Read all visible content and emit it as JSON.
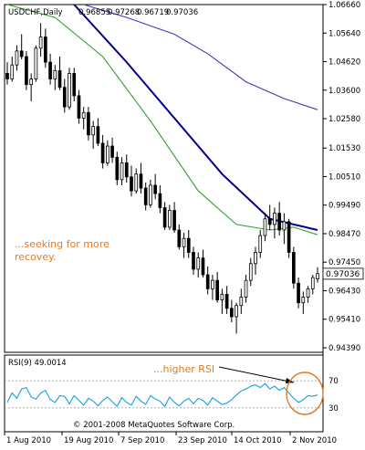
{
  "colors": {
    "frame": "#000000",
    "price_bars": "#000000",
    "ma_fast": "#2ea02e",
    "ma_medium": "#00008b",
    "ma_slow": "#3c3cb4",
    "rsi_line": "#1a9ee8",
    "rsi_levels": "#a0a0a0",
    "annotation": "#e07b28",
    "arrow": "#000000"
  },
  "chart_data": [
    {
      "type": "ohlc",
      "header": {
        "symbol": "USDCHF,Daily",
        "open": "0.96855",
        "high": "0.97268",
        "low": "0.96719",
        "close": "0.97036"
      },
      "y_tick_labels": [
        "1.06660",
        "1.05640",
        "1.04620",
        "1.03600",
        "1.02580",
        "1.01530",
        "1.00510",
        "0.99490",
        "0.98470",
        "0.97450",
        "0.96430",
        "0.95410",
        "0.94390"
      ],
      "current_price_label": "0.97036",
      "ylim": [
        0.9439,
        1.0666
      ],
      "x_tick_labels": [
        "1 Aug 2010",
        "19 Aug 2010",
        "7 Sep 2010",
        "23 Sep 2010",
        "14 Oct 2010",
        "2 Nov 2010"
      ],
      "annotation": [
        "...seeking for more",
        "recovey."
      ],
      "candles_note": "approximate daily OHLC read off the chart",
      "candles": [
        [
          1.042,
          1.046,
          1.038,
          1.04
        ],
        [
          1.04,
          1.048,
          1.039,
          1.045
        ],
        [
          1.045,
          1.052,
          1.043,
          1.05
        ],
        [
          1.05,
          1.056,
          1.047,
          1.048
        ],
        [
          1.048,
          1.05,
          1.036,
          1.038
        ],
        [
          1.038,
          1.042,
          1.032,
          1.04
        ],
        [
          1.04,
          1.052,
          1.039,
          1.051
        ],
        [
          1.051,
          1.06,
          1.048,
          1.055
        ],
        [
          1.055,
          1.058,
          1.044,
          1.046
        ],
        [
          1.046,
          1.049,
          1.038,
          1.04
        ],
        [
          1.04,
          1.045,
          1.036,
          1.043
        ],
        [
          1.043,
          1.048,
          1.036,
          1.037
        ],
        [
          1.037,
          1.04,
          1.028,
          1.03
        ],
        [
          1.03,
          1.044,
          1.029,
          1.042
        ],
        [
          1.042,
          1.044,
          1.032,
          1.034
        ],
        [
          1.034,
          1.036,
          1.024,
          1.026
        ],
        [
          1.026,
          1.03,
          1.022,
          1.028
        ],
        [
          1.028,
          1.03,
          1.018,
          1.02
        ],
        [
          1.02,
          1.025,
          1.015,
          1.023
        ],
        [
          1.023,
          1.026,
          1.016,
          1.017
        ],
        [
          1.017,
          1.02,
          1.008,
          1.01
        ],
        [
          1.01,
          1.018,
          1.009,
          1.016
        ],
        [
          1.016,
          1.019,
          1.01,
          1.012
        ],
        [
          1.012,
          1.014,
          1.002,
          1.004
        ],
        [
          1.004,
          1.012,
          1.002,
          1.01
        ],
        [
          1.01,
          1.013,
          1.003,
          1.005
        ],
        [
          1.005,
          1.009,
          0.998,
          1.0
        ],
        [
          1.0,
          1.008,
          0.999,
          1.006
        ],
        [
          1.006,
          1.01,
          0.999,
          1.001
        ],
        [
          1.001,
          1.003,
          0.993,
          0.995
        ],
        [
          0.995,
          1.004,
          0.994,
          1.002
        ],
        [
          1.002,
          1.006,
          0.997,
          0.999
        ],
        [
          0.999,
          1.002,
          0.992,
          0.994
        ],
        [
          0.994,
          0.996,
          0.986,
          0.987
        ],
        [
          0.987,
          0.995,
          0.986,
          0.993
        ],
        [
          0.993,
          0.996,
          0.985,
          0.986
        ],
        [
          0.986,
          0.988,
          0.979,
          0.98
        ],
        [
          0.98,
          0.985,
          0.976,
          0.983
        ],
        [
          0.983,
          0.986,
          0.976,
          0.978
        ],
        [
          0.978,
          0.98,
          0.97,
          0.972
        ],
        [
          0.972,
          0.978,
          0.969,
          0.976
        ],
        [
          0.976,
          0.979,
          0.969,
          0.97
        ],
        [
          0.97,
          0.973,
          0.963,
          0.965
        ],
        [
          0.965,
          0.97,
          0.961,
          0.968
        ],
        [
          0.968,
          0.971,
          0.96,
          0.961
        ],
        [
          0.961,
          0.965,
          0.956,
          0.963
        ],
        [
          0.963,
          0.966,
          0.956,
          0.958
        ],
        [
          0.958,
          0.961,
          0.953,
          0.955
        ],
        [
          0.955,
          0.96,
          0.949,
          0.959
        ],
        [
          0.959,
          0.965,
          0.956,
          0.962
        ],
        [
          0.962,
          0.97,
          0.96,
          0.968
        ],
        [
          0.968,
          0.976,
          0.966,
          0.974
        ],
        [
          0.974,
          0.98,
          0.97,
          0.978
        ],
        [
          0.978,
          0.986,
          0.976,
          0.984
        ],
        [
          0.984,
          0.992,
          0.982,
          0.99
        ],
        [
          0.99,
          0.995,
          0.986,
          0.988
        ],
        [
          0.988,
          0.994,
          0.983,
          0.992
        ],
        [
          0.992,
          0.996,
          0.984,
          0.986
        ],
        [
          0.986,
          0.992,
          0.981,
          0.989
        ],
        [
          0.989,
          0.99,
          0.976,
          0.978
        ],
        [
          0.978,
          0.98,
          0.965,
          0.967
        ],
        [
          0.967,
          0.969,
          0.958,
          0.96
        ],
        [
          0.96,
          0.964,
          0.956,
          0.962
        ],
        [
          0.962,
          0.966,
          0.96,
          0.965
        ],
        [
          0.965,
          0.97,
          0.963,
          0.969
        ],
        [
          0.9685,
          0.9727,
          0.9672,
          0.9704
        ]
      ],
      "moving_averages": [
        {
          "color_key": "ma_fast",
          "points": [
            [
              0,
              1.0666
            ],
            [
              10,
              1.062
            ],
            [
              20,
              1.048
            ],
            [
              30,
              1.025
            ],
            [
              40,
              1.0
            ],
            [
              48,
              0.988
            ],
            [
              55,
              0.986
            ],
            [
              60,
              0.987
            ],
            [
              65,
              0.9843
            ]
          ]
        },
        {
          "color_key": "ma_medium",
          "points": [
            [
              14,
              1.0666
            ],
            [
              25,
              1.046
            ],
            [
              35,
              1.026
            ],
            [
              45,
              1.006
            ],
            [
              55,
              0.99
            ],
            [
              65,
              0.986
            ]
          ]
        },
        {
          "color_key": "ma_slow",
          "points": [
            [
              16,
              1.0666
            ],
            [
              25,
              1.062
            ],
            [
              35,
              1.056
            ],
            [
              42,
              1.049
            ],
            [
              50,
              1.039
            ],
            [
              58,
              1.033
            ],
            [
              65,
              1.029
            ]
          ]
        }
      ]
    },
    {
      "type": "line",
      "header": "RSI(9) 49.0014",
      "ylim": [
        0,
        100
      ],
      "levels": [
        70,
        30
      ],
      "level_labels": [
        "70",
        "30"
      ],
      "annotation": "...higher RSI",
      "copyright": "© 2001-2008 MetaQuotes Software Corp.",
      "values": [
        38,
        52,
        44,
        58,
        60,
        46,
        43,
        52,
        56,
        42,
        38,
        48,
        47,
        36,
        48,
        41,
        34,
        44,
        40,
        33,
        41,
        46,
        39,
        32,
        45,
        38,
        34,
        47,
        40,
        35,
        48,
        43,
        40,
        32,
        46,
        38,
        33,
        40,
        44,
        36,
        44,
        41,
        34,
        45,
        40,
        35,
        37,
        42,
        49,
        55,
        58,
        62,
        64,
        60,
        66,
        58,
        62,
        56,
        60,
        52,
        44,
        38,
        42,
        48,
        47,
        49
      ]
    }
  ]
}
